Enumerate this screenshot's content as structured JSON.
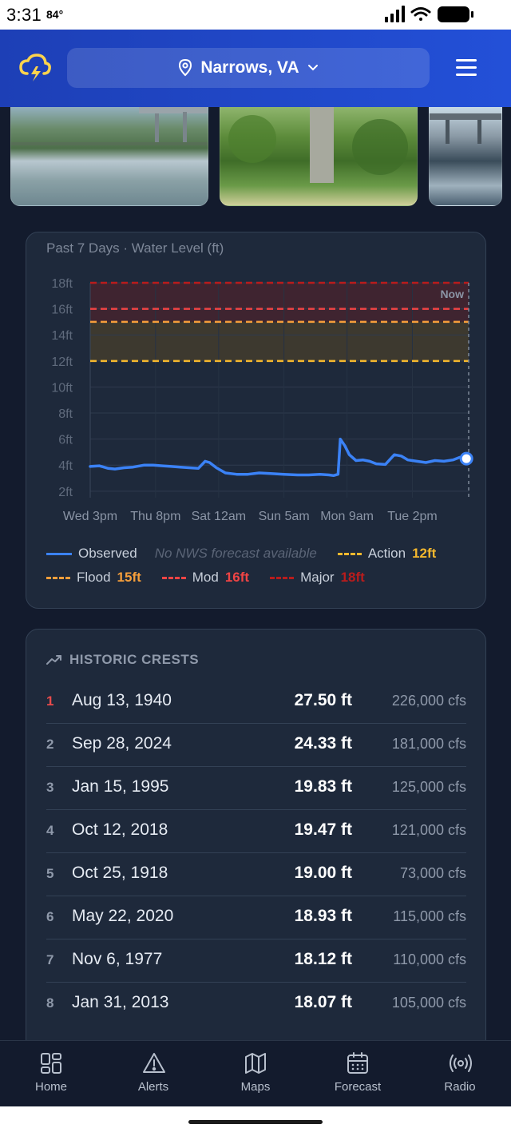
{
  "status_bar": {
    "time": "3:31",
    "temperature": "84°"
  },
  "header": {
    "location": "Narrows, VA",
    "logo_icon": "storm-cloud-icon",
    "menu_icon": "hamburger-menu-icon"
  },
  "chart_card": {
    "title": "Past 7 Days · Water Level (ft)",
    "now_label": "Now"
  },
  "chart_data": {
    "type": "line",
    "title": "Past 7 Days · Water Level (ft)",
    "ylabel": "",
    "xlabel": "",
    "y_ticks": [
      "2ft",
      "4ft",
      "6ft",
      "8ft",
      "10ft",
      "12ft",
      "14ft",
      "16ft",
      "18ft"
    ],
    "y_tick_values": [
      2,
      4,
      6,
      8,
      10,
      12,
      14,
      16,
      18
    ],
    "ylim": [
      1.5,
      18
    ],
    "x_ticks": [
      "Wed 3pm",
      "Thu 8pm",
      "Sat 12am",
      "Sun 5am",
      "Mon 9am",
      "Tue 2pm"
    ],
    "x_tick_hours": [
      0,
      29,
      57,
      86,
      114,
      143
    ],
    "xlim_hours": [
      0,
      168
    ],
    "grid": true,
    "legend_position": "bottom",
    "thresholds": [
      {
        "name": "Action",
        "value": 12,
        "color": "#f5b82e"
      },
      {
        "name": "Flood",
        "value": 15,
        "color": "#f59e3b"
      },
      {
        "name": "Mod",
        "value": 16,
        "color": "#ef4444"
      },
      {
        "name": "Major",
        "value": 18,
        "color": "#b91c1c"
      }
    ],
    "series": [
      {
        "name": "Observed",
        "color": "#3b82f6",
        "x_hours": [
          0,
          4,
          8,
          11,
          15,
          19,
          24,
          28,
          32,
          36,
          40,
          44,
          48,
          51,
          53,
          56,
          60,
          65,
          70,
          75,
          80,
          86,
          92,
          97,
          102,
          106,
          108,
          110,
          111,
          113,
          115,
          118,
          121,
          124,
          127,
          131,
          135,
          138,
          141,
          145,
          149,
          153,
          157,
          161,
          164,
          167
        ],
        "y": [
          3.9,
          3.95,
          3.75,
          3.7,
          3.8,
          3.85,
          4.0,
          4.0,
          3.95,
          3.9,
          3.85,
          3.8,
          3.75,
          4.3,
          4.2,
          3.8,
          3.4,
          3.3,
          3.3,
          3.4,
          3.35,
          3.3,
          3.25,
          3.25,
          3.3,
          3.25,
          3.2,
          3.3,
          6.0,
          5.5,
          4.8,
          4.35,
          4.4,
          4.3,
          4.1,
          4.05,
          4.8,
          4.7,
          4.4,
          4.3,
          4.2,
          4.35,
          4.3,
          4.4,
          4.6,
          4.5
        ]
      }
    ],
    "forecast_note": "No NWS forecast available"
  },
  "legend": {
    "observed": "Observed",
    "forecast_note": "No NWS forecast available",
    "action_label": "Action",
    "action_value": "12ft",
    "flood_label": "Flood",
    "flood_value": "15ft",
    "mod_label": "Mod",
    "mod_value": "16ft",
    "major_label": "Major",
    "major_value": "18ft"
  },
  "crests": {
    "heading": "HISTORIC CRESTS",
    "rows": [
      {
        "rank": "1",
        "date": "Aug 13, 1940",
        "height": "27.50 ft",
        "flow": "226,000 cfs"
      },
      {
        "rank": "2",
        "date": "Sep 28, 2024",
        "height": "24.33 ft",
        "flow": "181,000 cfs"
      },
      {
        "rank": "3",
        "date": "Jan 15, 1995",
        "height": "19.83 ft",
        "flow": "125,000 cfs"
      },
      {
        "rank": "4",
        "date": "Oct 12, 2018",
        "height": "19.47 ft",
        "flow": "121,000 cfs"
      },
      {
        "rank": "5",
        "date": "Oct 25, 1918",
        "height": "19.00 ft",
        "flow": "73,000 cfs"
      },
      {
        "rank": "6",
        "date": "May 22, 2020",
        "height": "18.93 ft",
        "flow": "115,000 cfs"
      },
      {
        "rank": "7",
        "date": "Nov 6, 1977",
        "height": "18.12 ft",
        "flow": "110,000 cfs"
      },
      {
        "rank": "8",
        "date": "Jan 31, 2013",
        "height": "18.07 ft",
        "flow": "105,000 cfs"
      }
    ]
  },
  "nav": {
    "items": [
      {
        "label": "Home",
        "icon": "grid-icon"
      },
      {
        "label": "Alerts",
        "icon": "warning-triangle-icon"
      },
      {
        "label": "Maps",
        "icon": "map-icon"
      },
      {
        "label": "Forecast",
        "icon": "calendar-icon"
      },
      {
        "label": "Radio",
        "icon": "radio-broadcast-icon"
      }
    ]
  }
}
